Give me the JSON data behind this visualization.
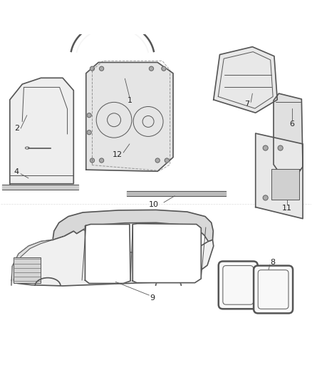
{
  "bg_color": "#ffffff",
  "line_color": "#555555",
  "label_color": "#222222",
  "figsize": [
    4.38,
    5.33
  ],
  "dpi": 100
}
